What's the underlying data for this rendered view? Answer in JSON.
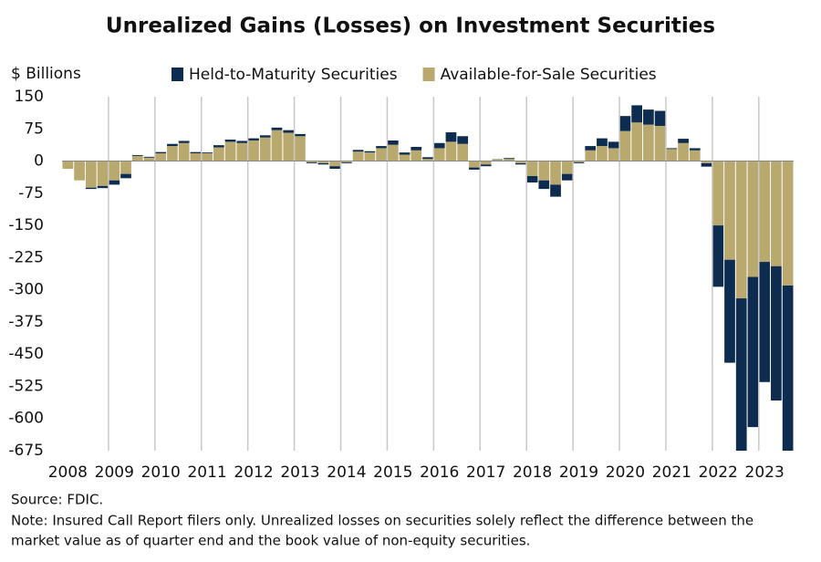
{
  "chart_data": {
    "type": "bar",
    "stacked": true,
    "title": "Unrealized Gains (Losses) on Investment Securities",
    "y_label": "$ Billions",
    "source": "Source: FDIC.",
    "note": [
      "Note: Insured Call Report filers only. Unrealized losses on securities solely reflect the difference between the",
      "market value as of quarter end and the book value of non-equity securities."
    ],
    "categories": [
      "2008",
      null,
      null,
      null,
      "2009",
      null,
      null,
      null,
      "2010",
      null,
      null,
      null,
      "2011",
      null,
      null,
      null,
      "2012",
      null,
      null,
      null,
      "2013",
      null,
      null,
      null,
      "2014",
      null,
      null,
      null,
      "2015",
      null,
      null,
      null,
      "2016",
      null,
      null,
      null,
      "2017",
      null,
      null,
      null,
      "2018",
      null,
      null,
      null,
      "2019",
      null,
      null,
      null,
      "2020",
      null,
      null,
      null,
      "2021",
      null,
      null,
      null,
      "2022",
      null,
      null,
      null,
      "2023",
      null,
      null
    ],
    "series": [
      {
        "name": "Available-for-Sale Securities",
        "color": "#b9a96f",
        "values": [
          -18,
          -45,
          -62,
          -58,
          -45,
          -30,
          12,
          8,
          18,
          35,
          42,
          18,
          18,
          32,
          45,
          42,
          48,
          55,
          72,
          66,
          58,
          -3,
          -5,
          -12,
          -3,
          22,
          20,
          30,
          38,
          15,
          25,
          5,
          30,
          45,
          40,
          -15,
          -8,
          3,
          5,
          -5,
          -35,
          -45,
          -55,
          -30,
          -3,
          25,
          35,
          30,
          70,
          90,
          85,
          82,
          28,
          42,
          25,
          -5,
          -150,
          -230,
          -320,
          -270,
          -235,
          -245,
          -290
        ]
      },
      {
        "name": "Held-to-Maturity Securities",
        "color": "#0d2c4f",
        "values": [
          0,
          0,
          -3,
          -5,
          -10,
          -10,
          2,
          2,
          3,
          5,
          5,
          3,
          2,
          5,
          5,
          5,
          5,
          5,
          6,
          6,
          5,
          -2,
          -3,
          -6,
          -2,
          4,
          3,
          5,
          10,
          5,
          8,
          4,
          12,
          22,
          18,
          -5,
          -4,
          1,
          2,
          -3,
          -15,
          -20,
          -28,
          -15,
          -2,
          10,
          18,
          15,
          35,
          40,
          35,
          35,
          2,
          10,
          5,
          -8,
          -143,
          -240,
          -370,
          -350,
          -280,
          -313,
          -390
        ]
      }
    ],
    "ylim": [
      -675,
      150
    ],
    "yticks": [
      150,
      75,
      0,
      -75,
      -150,
      -225,
      -300,
      -375,
      -450,
      -525,
      -600,
      -675
    ],
    "legend": "top"
  }
}
